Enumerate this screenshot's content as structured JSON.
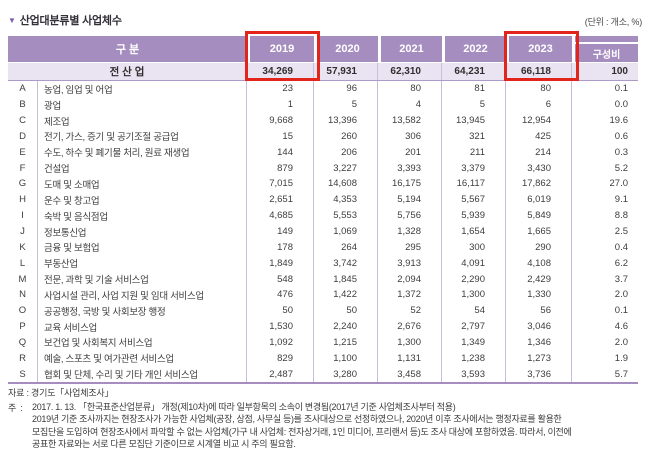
{
  "title": {
    "marker": "▼",
    "text": "산업대분류별 사업체수",
    "unit_label": "(단위 : 개소, %)"
  },
  "table": {
    "group_header": "구 분",
    "year_columns": [
      "2019",
      "2020",
      "2021",
      "2022",
      "2023"
    ],
    "ratio_header": "구성비",
    "highlighted_years": [
      "2019",
      "2023"
    ],
    "total_row": {
      "label": "전 산 업",
      "values": [
        "34,269",
        "57,931",
        "62,310",
        "64,231",
        "66,118"
      ],
      "ratio": "100"
    },
    "rows": [
      {
        "code": "A",
        "name": "농업, 임업 및 어업",
        "values": [
          "23",
          "96",
          "80",
          "81",
          "80"
        ],
        "ratio": "0.1"
      },
      {
        "code": "B",
        "name": "광업",
        "values": [
          "1",
          "5",
          "4",
          "5",
          "6"
        ],
        "ratio": "0.0"
      },
      {
        "code": "C",
        "name": "제조업",
        "values": [
          "9,668",
          "13,396",
          "13,582",
          "13,945",
          "12,954"
        ],
        "ratio": "19.6"
      },
      {
        "code": "D",
        "name": "전기, 가스, 증기 및 공기조절 공급업",
        "values": [
          "15",
          "260",
          "306",
          "321",
          "425"
        ],
        "ratio": "0.6"
      },
      {
        "code": "E",
        "name": "수도, 하수 및 폐기물 처리, 원료 재생업",
        "values": [
          "144",
          "206",
          "201",
          "211",
          "214"
        ],
        "ratio": "0.3"
      },
      {
        "code": "F",
        "name": "건설업",
        "values": [
          "879",
          "3,227",
          "3,393",
          "3,379",
          "3,430"
        ],
        "ratio": "5.2"
      },
      {
        "code": "G",
        "name": "도매 및 소매업",
        "values": [
          "7,015",
          "14,608",
          "16,175",
          "16,117",
          "17,862"
        ],
        "ratio": "27.0"
      },
      {
        "code": "H",
        "name": "운수 및 창고업",
        "values": [
          "2,651",
          "4,353",
          "5,194",
          "5,567",
          "6,019"
        ],
        "ratio": "9.1"
      },
      {
        "code": "I",
        "name": "숙박 및 음식점업",
        "values": [
          "4,685",
          "5,553",
          "5,756",
          "5,939",
          "5,849"
        ],
        "ratio": "8.8"
      },
      {
        "code": "J",
        "name": "정보통신업",
        "values": [
          "149",
          "1,069",
          "1,328",
          "1,654",
          "1,665"
        ],
        "ratio": "2.5"
      },
      {
        "code": "K",
        "name": "금융 및 보험업",
        "values": [
          "178",
          "264",
          "295",
          "300",
          "290"
        ],
        "ratio": "0.4"
      },
      {
        "code": "L",
        "name": "부동산업",
        "values": [
          "1,849",
          "3,742",
          "3,913",
          "4,091",
          "4,108"
        ],
        "ratio": "6.2"
      },
      {
        "code": "M",
        "name": "전문, 과학 및 기술 서비스업",
        "values": [
          "548",
          "1,845",
          "2,094",
          "2,290",
          "2,429"
        ],
        "ratio": "3.7"
      },
      {
        "code": "N",
        "name": "사업시설 관리, 사업 지원 및 임대 서비스업",
        "values": [
          "476",
          "1,422",
          "1,372",
          "1,300",
          "1,330"
        ],
        "ratio": "2.0"
      },
      {
        "code": "O",
        "name": "공공행정, 국방 및 사회보장 행정",
        "values": [
          "50",
          "50",
          "52",
          "54",
          "56"
        ],
        "ratio": "0.1"
      },
      {
        "code": "P",
        "name": "교육 서비스업",
        "values": [
          "1,530",
          "2,240",
          "2,676",
          "2,797",
          "3,046"
        ],
        "ratio": "4.6"
      },
      {
        "code": "Q",
        "name": "보건업 및 사회복지 서비스업",
        "values": [
          "1,092",
          "1,215",
          "1,300",
          "1,349",
          "1,346"
        ],
        "ratio": "2.0"
      },
      {
        "code": "R",
        "name": "예술, 스포츠 및 여가관련 서비스업",
        "values": [
          "829",
          "1,100",
          "1,131",
          "1,238",
          "1,273"
        ],
        "ratio": "1.9"
      },
      {
        "code": "S",
        "name": "협회 및 단체, 수리 및 기타 개인 서비스업",
        "values": [
          "2,487",
          "3,280",
          "3,458",
          "3,593",
          "3,736"
        ],
        "ratio": "5.7"
      }
    ]
  },
  "footer": {
    "source": "자료 : 경기도「사업체조사」",
    "note_prefix": "주  :",
    "note_lines": [
      "2017. 1. 13. 「한국표준산업분류」 개정(제10차)에 따라 일부항목의 소속이 변경됨(2017년 기준 사업체조사부터 적용)",
      "2019년 기준 조사까지는 현장조사가 가능한 사업체(공장, 상점, 사무실 등)를 조사대상으로 선정하였으나, 2020년 이후 조사에서는 행정자료를 활용한",
      "모집단을 도입하여 현장조사에서 파악할 수 없는 사업체(가구 내 사업체: 전자상거래, 1인 미디어, 프리랜서 등)도 조사 대상에 포함하였음. 따라서, 이전에",
      "공표한 자료와는 서로 다른 모집단 기준이므로 시계열 비교 시 주의 필요함."
    ]
  },
  "colors": {
    "header_purple": "#a58dbf",
    "total_row_lavender": "#eae3f2",
    "grid_line": "#cbbcdb",
    "highlight_red": "#e1241c"
  }
}
